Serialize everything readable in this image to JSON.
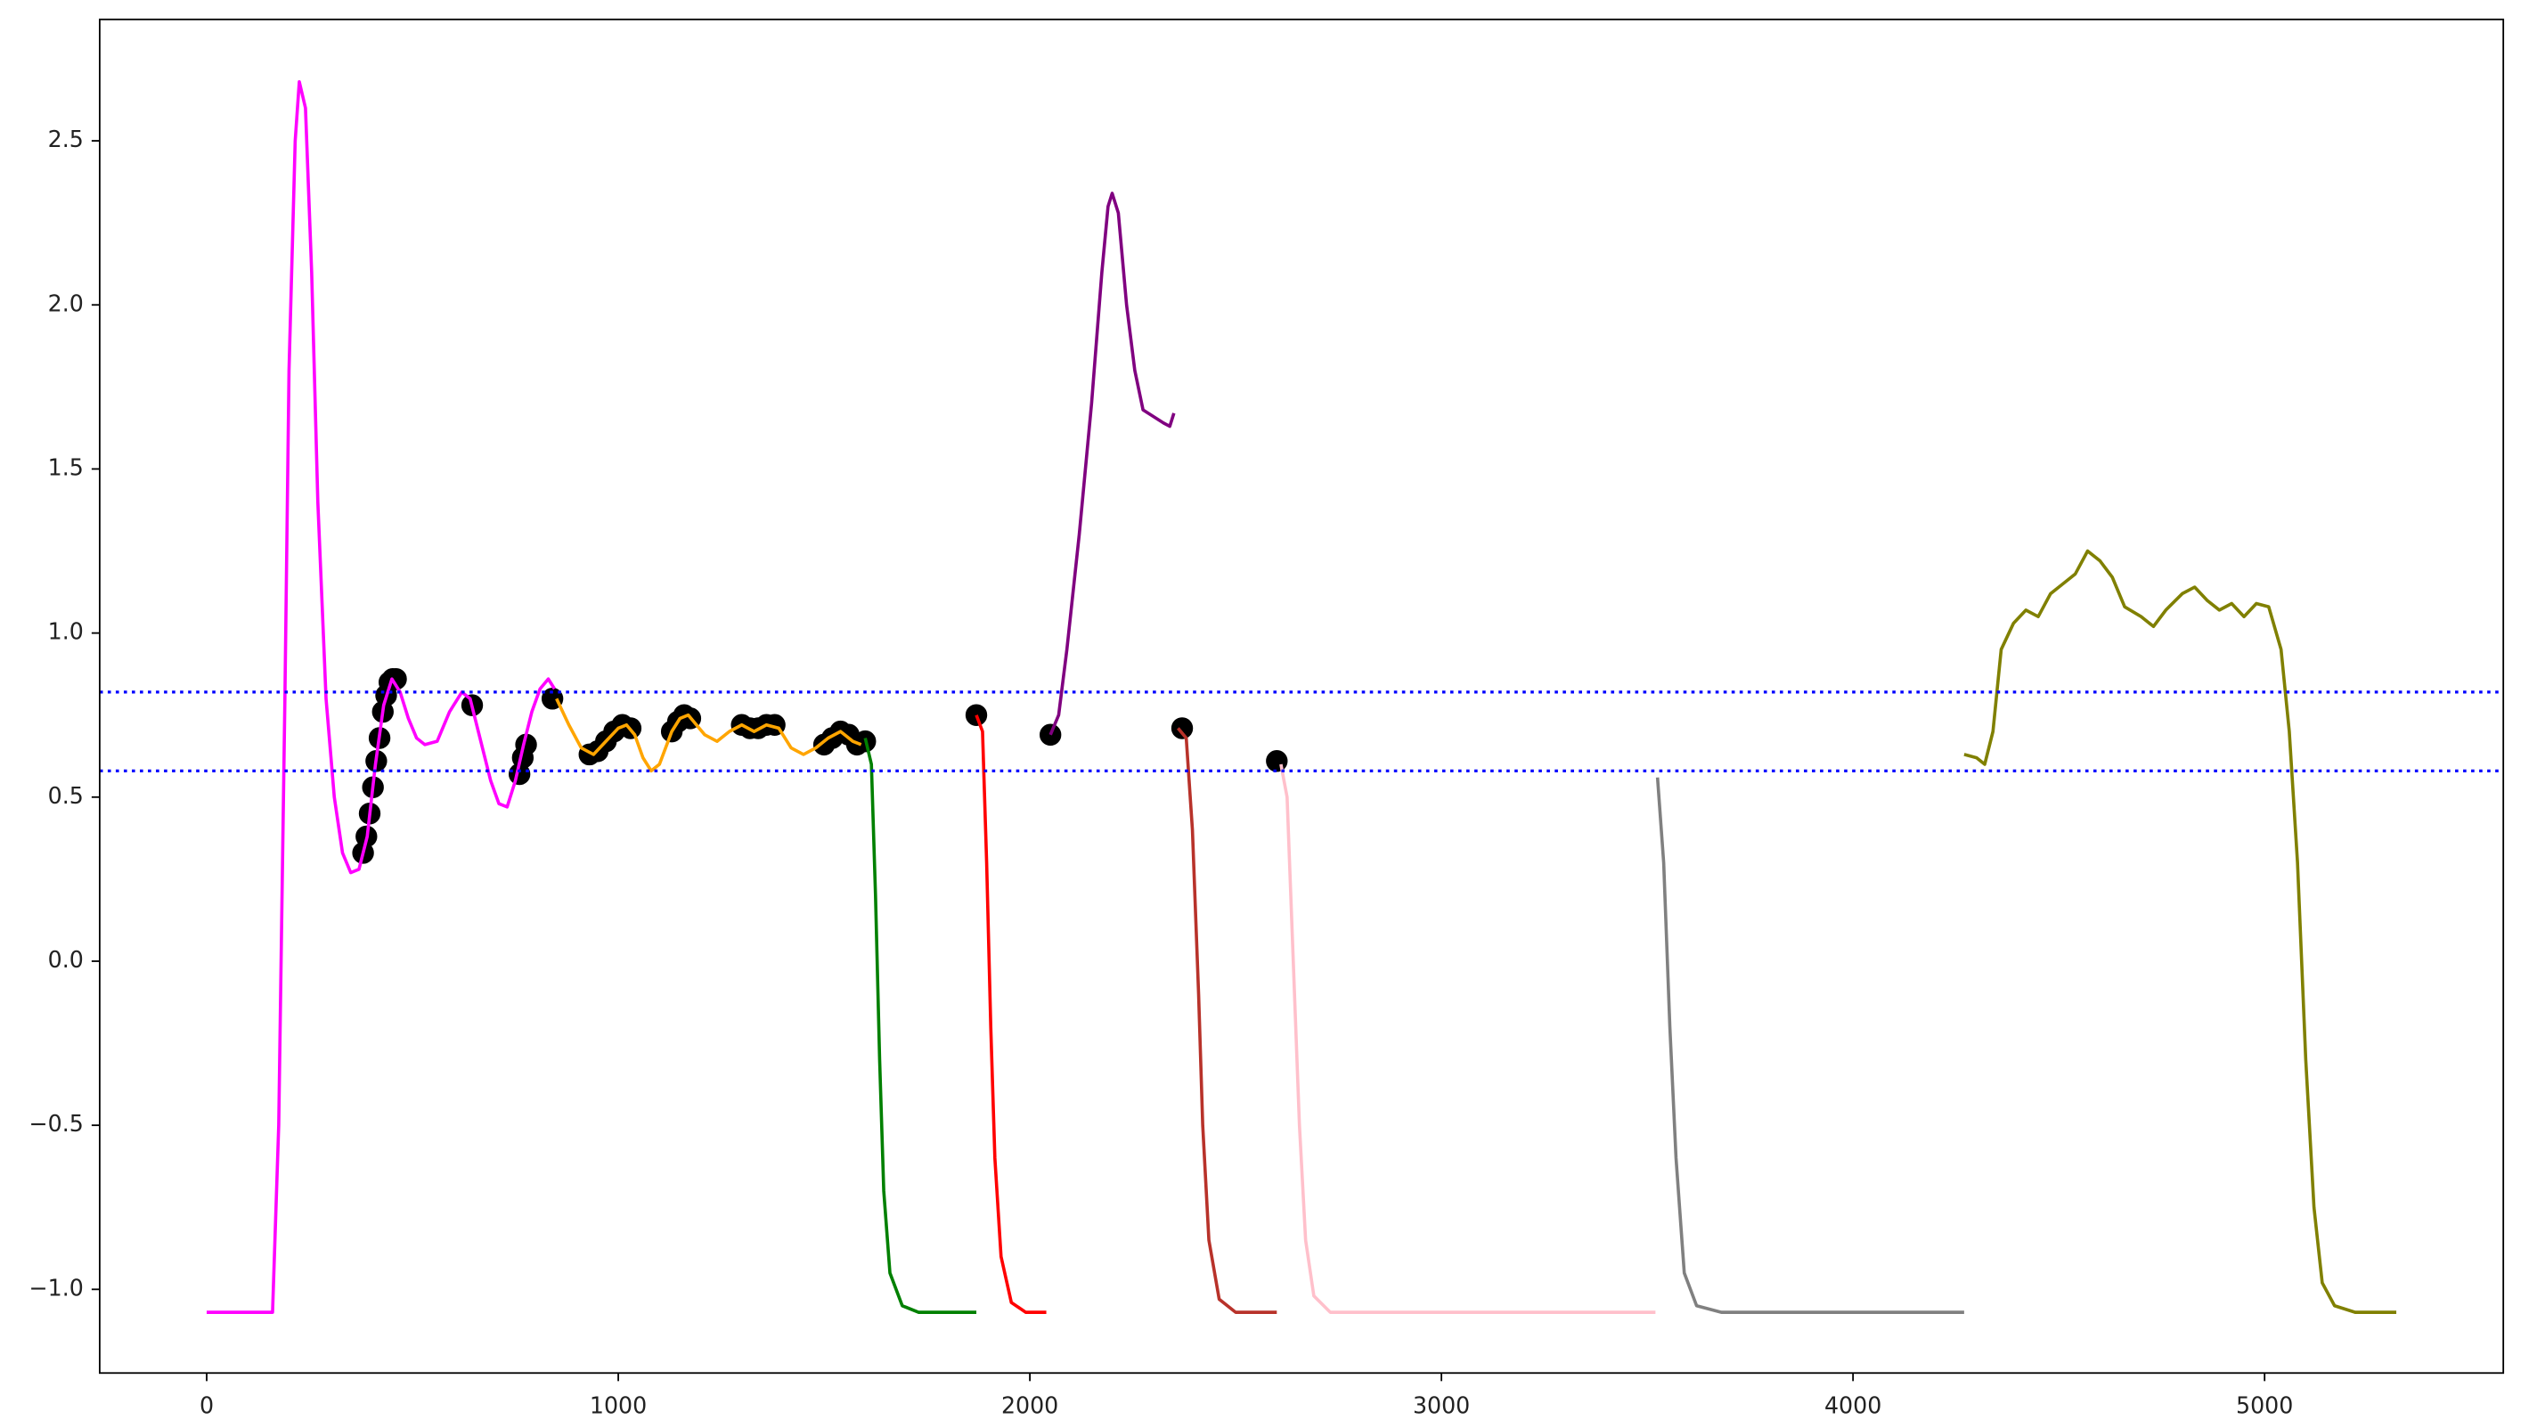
{
  "chart_data": {
    "type": "line",
    "xlim": [
      -260,
      5580
    ],
    "ylim": [
      -1.255,
      2.87
    ],
    "xticks": [
      0,
      1000,
      2000,
      3000,
      4000,
      5000
    ],
    "yticks": [
      {
        "value": -1.0,
        "label": "−1.0"
      },
      {
        "value": -0.5,
        "label": "−0.5"
      },
      {
        "value": 0.0,
        "label": "0.0"
      },
      0.5,
      {
        "value": 1.0,
        "label": "1.0"
      },
      1.5,
      {
        "value": 2.0,
        "label": "2.0"
      },
      2.5
    ],
    "hlines": {
      "color": "#0000ff",
      "values": [
        0.82,
        0.58
      ]
    },
    "markers": {
      "color": "#000000",
      "x": [
        380,
        388,
        396,
        404,
        412,
        420,
        428,
        436,
        444,
        452,
        460,
        645,
        760,
        768,
        776,
        840,
        930,
        950,
        970,
        990,
        1010,
        1030,
        1130,
        1145,
        1160,
        1175,
        1300,
        1320,
        1340,
        1360,
        1380,
        1500,
        1520,
        1540,
        1560,
        1580,
        1600,
        1870,
        2050,
        2370,
        2600
      ],
      "values": [
        0.33,
        0.38,
        0.45,
        0.53,
        0.61,
        0.68,
        0.76,
        0.81,
        0.85,
        0.86,
        0.86,
        0.78,
        0.57,
        0.62,
        0.66,
        0.8,
        0.63,
        0.64,
        0.67,
        0.7,
        0.72,
        0.71,
        0.7,
        0.73,
        0.75,
        0.74,
        0.72,
        0.71,
        0.71,
        0.72,
        0.72,
        0.66,
        0.68,
        0.7,
        0.69,
        0.66,
        0.67,
        0.75,
        0.69,
        0.71,
        0.61
      ]
    },
    "series": [
      {
        "color": "#ff00ff",
        "x": [
          0,
          160,
          175,
          190,
          200,
          215,
          225,
          240,
          255,
          270,
          290,
          310,
          330,
          350,
          370,
          390,
          410,
          430,
          450,
          470,
          490,
          510,
          530,
          560,
          590,
          620,
          640,
          660,
          690,
          710,
          730,
          750,
          770,
          790,
          810,
          830,
          845
        ],
        "values": [
          -1.07,
          -1.07,
          -0.5,
          0.8,
          1.8,
          2.5,
          2.68,
          2.6,
          2.1,
          1.4,
          0.8,
          0.5,
          0.33,
          0.27,
          0.28,
          0.38,
          0.6,
          0.78,
          0.86,
          0.82,
          0.74,
          0.68,
          0.66,
          0.67,
          0.76,
          0.82,
          0.8,
          0.7,
          0.55,
          0.48,
          0.47,
          0.55,
          0.66,
          0.76,
          0.83,
          0.86,
          0.83
        ]
      },
      {
        "color": "#ffa500",
        "x": [
          850,
          880,
          910,
          940,
          970,
          1000,
          1020,
          1040,
          1060,
          1080,
          1100,
          1130,
          1150,
          1170,
          1190,
          1210,
          1240,
          1270,
          1300,
          1330,
          1360,
          1390,
          1420,
          1450,
          1480,
          1510,
          1540,
          1570,
          1590
        ],
        "values": [
          0.8,
          0.72,
          0.65,
          0.63,
          0.67,
          0.71,
          0.72,
          0.69,
          0.62,
          0.58,
          0.6,
          0.7,
          0.74,
          0.75,
          0.72,
          0.69,
          0.67,
          0.7,
          0.72,
          0.7,
          0.72,
          0.71,
          0.65,
          0.63,
          0.65,
          0.68,
          0.7,
          0.67,
          0.66
        ]
      },
      {
        "color": "#008000",
        "x": [
          1600,
          1615,
          1625,
          1635,
          1645,
          1660,
          1690,
          1730,
          1870
        ],
        "values": [
          0.68,
          0.6,
          0.2,
          -0.3,
          -0.7,
          -0.95,
          -1.05,
          -1.07,
          -1.07
        ]
      },
      {
        "color": "#ff0000",
        "x": [
          1870,
          1885,
          1895,
          1905,
          1915,
          1930,
          1955,
          1990,
          2040
        ],
        "values": [
          0.75,
          0.7,
          0.3,
          -0.2,
          -0.6,
          -0.9,
          -1.04,
          -1.07,
          -1.07
        ]
      },
      {
        "color": "#800080",
        "x": [
          2050,
          2070,
          2090,
          2120,
          2150,
          2175,
          2190,
          2200,
          2215,
          2235,
          2255,
          2275,
          2300,
          2325,
          2340,
          2350
        ],
        "values": [
          0.69,
          0.75,
          0.95,
          1.3,
          1.7,
          2.1,
          2.3,
          2.34,
          2.28,
          2.0,
          1.8,
          1.68,
          1.66,
          1.64,
          1.63,
          1.67
        ]
      },
      {
        "color": "#b8322a",
        "x": [
          2360,
          2380,
          2395,
          2410,
          2420,
          2435,
          2460,
          2500,
          2600
        ],
        "values": [
          0.71,
          0.68,
          0.4,
          -0.1,
          -0.5,
          -0.85,
          -1.03,
          -1.07,
          -1.07
        ]
      },
      {
        "color": "#ffc0cb",
        "x": [
          2610,
          2625,
          2640,
          2655,
          2670,
          2690,
          2730,
          3520
        ],
        "values": [
          0.6,
          0.5,
          0.0,
          -0.5,
          -0.85,
          -1.02,
          -1.07,
          -1.07
        ]
      },
      {
        "color": "#808080",
        "x": [
          3525,
          3540,
          3555,
          3570,
          3590,
          3620,
          3680,
          4270
        ],
        "values": [
          0.56,
          0.3,
          -0.2,
          -0.6,
          -0.95,
          -1.05,
          -1.07,
          -1.07
        ]
      },
      {
        "color": "#808000",
        "x": [
          4270,
          4300,
          4320,
          4340,
          4360,
          4390,
          4420,
          4450,
          4480,
          4510,
          4540,
          4570,
          4600,
          4630,
          4660,
          4700,
          4730,
          4760,
          4800,
          4830,
          4860,
          4890,
          4920,
          4950,
          4980,
          5010,
          5040,
          5060,
          5080,
          5100,
          5120,
          5140,
          5170,
          5220,
          5320
        ],
        "values": [
          0.63,
          0.62,
          0.6,
          0.7,
          0.95,
          1.03,
          1.07,
          1.05,
          1.12,
          1.15,
          1.18,
          1.25,
          1.22,
          1.17,
          1.08,
          1.05,
          1.02,
          1.07,
          1.12,
          1.14,
          1.1,
          1.07,
          1.09,
          1.05,
          1.09,
          1.08,
          0.95,
          0.7,
          0.3,
          -0.3,
          -0.75,
          -0.98,
          -1.05,
          -1.07,
          -1.07
        ]
      }
    ]
  }
}
